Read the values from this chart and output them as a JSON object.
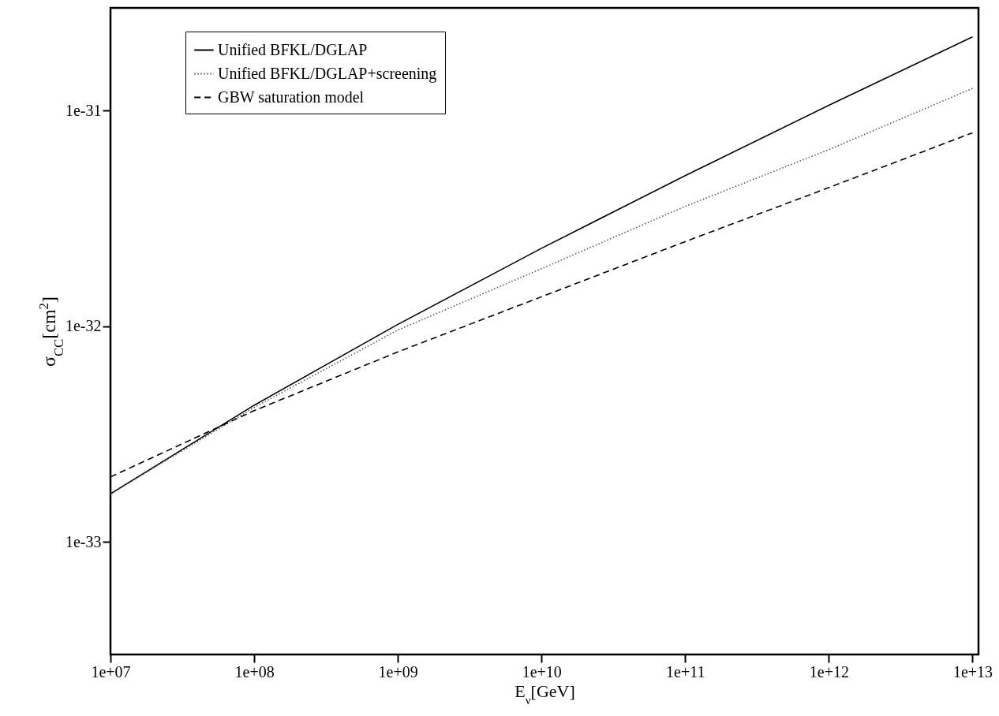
{
  "chart_data": {
    "type": "line",
    "xlabel": "E$_{ν}$[GeV]",
    "ylabel": "σ$_{CC}$[cm$^{2}$]",
    "log": "xy",
    "grid": false,
    "legend": "top left",
    "marker": "none",
    "x": [
      10000000.0,
      100000000.0,
      1000000000.0,
      10000000000.0,
      100000000000.0,
      1000000000000.0,
      10000000000000.0
    ],
    "xlim": [
      10000000.0,
      11000000000000.0
    ],
    "xticks": [
      {
        "value": 10000000.0,
        "label": "1e+07"
      },
      {
        "value": 100000000.0,
        "label": "1e+08"
      },
      {
        "value": 1000000000.0,
        "label": "1e+09"
      },
      {
        "value": 10000000000.0,
        "label": "1e+10"
      },
      {
        "value": 100000000000.0,
        "label": "1e+11"
      },
      {
        "value": 1000000000000.0,
        "label": "1e+12"
      },
      {
        "value": 10000000000000.0,
        "label": "1e+13"
      }
    ],
    "ylim": [
      3e-34,
      3e-31
    ],
    "yticks": [
      {
        "value": 1e-33,
        "label": "1e-33"
      },
      {
        "value": 1e-32,
        "label": "1e-32"
      },
      {
        "value": 1e-31,
        "label": "1e-31"
      }
    ],
    "series": [
      {
        "name": "Unified BFKL/DGLAP",
        "color": "#000000",
        "line_style": "solid",
        "values": [
          1.67e-33,
          4.3e-33,
          1.02e-32,
          2.3e-32,
          5e-32,
          1.06e-31,
          2.2e-31
        ]
      },
      {
        "name": "Unified BFKL/DGLAP+screening",
        "color": "#555555",
        "line_style": "dotted",
        "values": [
          1.67e-33,
          4.2e-33,
          9.6e-33,
          1.85e-32,
          3.6e-32,
          6.6e-32,
          1.27e-31
        ]
      },
      {
        "name": "GBW saturation model",
        "color": "#000000",
        "line_style": "dashed",
        "values": [
          2e-33,
          4.06e-33,
          7.6e-33,
          1.37e-32,
          2.47e-32,
          4.4e-32,
          7.9e-32
        ]
      }
    ]
  }
}
